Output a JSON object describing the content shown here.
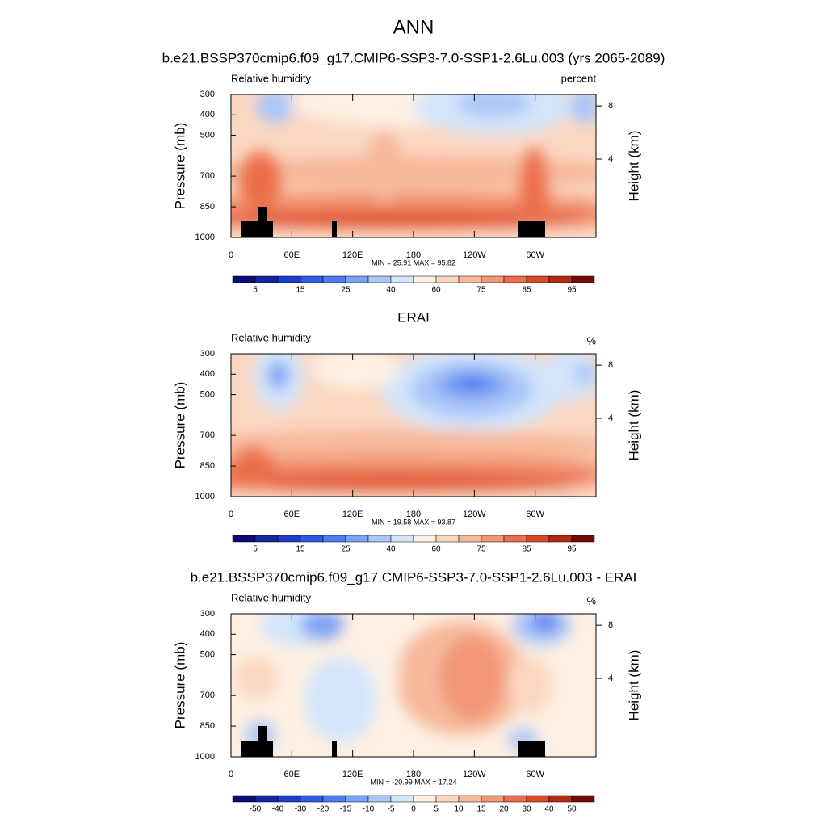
{
  "title": "ANN",
  "palette": [
    "#0a0a78",
    "#1426a0",
    "#1e3ccc",
    "#2e5ae8",
    "#4c7cf0",
    "#7ca2f5",
    "#aac6f8",
    "#d4e6fb",
    "#fdefe2",
    "#fbd7c2",
    "#f7b99c",
    "#f29674",
    "#ec6e48",
    "#da4a26",
    "#b22a12",
    "#780a04"
  ],
  "panels": [
    {
      "title": "b.e21.BSSP370cmip6.f09_g17.CMIP6-SSP3-7.0-SSP1-2.6Lu.003 (yrs 2065-2089)",
      "left_label": "Relative humidity",
      "right_label": "percent",
      "y_label": "Pressure (mb)",
      "y2_label": "Height (km)",
      "ylim": [
        300,
        1000
      ],
      "yticks": [
        300,
        400,
        500,
        700,
        850,
        1000
      ],
      "y2ticks": [
        8,
        4
      ],
      "xlim": [
        0,
        360
      ],
      "xticks": [
        0,
        {
          "value": 60,
          "label": "60E"
        },
        {
          "value": 120,
          "label": "120E"
        },
        180,
        {
          "value": 240,
          "label": "120W"
        },
        {
          "value": 300,
          "label": "60W"
        }
      ],
      "stats": "MIN =  25.91  MAX =  95.82",
      "colorbar_labels": [
        5,
        15,
        25,
        40,
        60,
        75,
        85,
        95
      ]
    },
    {
      "title": "ERAI",
      "left_label": "Relative humidity",
      "right_label": "%",
      "y_label": "Pressure (mb)",
      "y2_label": "Height (km)",
      "ylim": [
        300,
        1000
      ],
      "yticks": [
        300,
        400,
        500,
        700,
        850,
        1000
      ],
      "y2ticks": [
        8,
        4
      ],
      "xlim": [
        0,
        360
      ],
      "xticks": [
        0,
        {
          "value": 60,
          "label": "60E"
        },
        {
          "value": 120,
          "label": "120E"
        },
        180,
        {
          "value": 240,
          "label": "120W"
        },
        {
          "value": 300,
          "label": "60W"
        }
      ],
      "stats": "MIN =  19.58  MAX =  93.87",
      "colorbar_labels": [
        5,
        15,
        25,
        40,
        60,
        75,
        85,
        95
      ]
    },
    {
      "title": "b.e21.BSSP370cmip6.f09_g17.CMIP6-SSP3-7.0-SSP1-2.6Lu.003 - ERAI",
      "left_label": "Relative humidity",
      "right_label": "%",
      "y_label": "Pressure (mb)",
      "y2_label": "Height (km)",
      "ylim": [
        300,
        1000
      ],
      "yticks": [
        300,
        400,
        500,
        700,
        850,
        1000
      ],
      "y2ticks": [
        8,
        4
      ],
      "xlim": [
        0,
        360
      ],
      "xticks": [
        0,
        {
          "value": 60,
          "label": "60E"
        },
        {
          "value": 120,
          "label": "120E"
        },
        180,
        {
          "value": 240,
          "label": "120W"
        },
        {
          "value": 300,
          "label": "60W"
        }
      ],
      "stats": "MIN = -20.99  MAX =  17.24",
      "colorbar_labels": [
        -50,
        -40,
        -30,
        -20,
        -15,
        -10,
        -5,
        0,
        5,
        10,
        15,
        20,
        30,
        40,
        50
      ]
    }
  ]
}
